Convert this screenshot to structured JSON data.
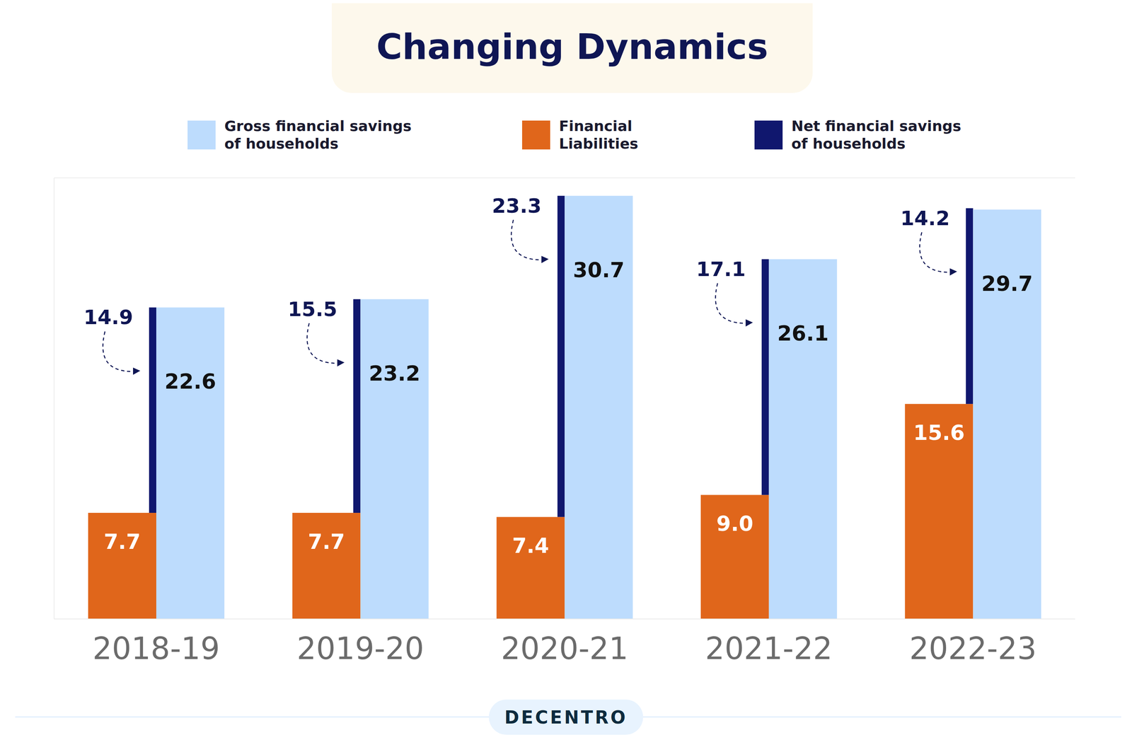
{
  "chart_data": {
    "type": "bar",
    "title": "Changing Dynamics",
    "categories": [
      "2018-19",
      "2019-20",
      "2020-21",
      "2021-22",
      "2022-23"
    ],
    "series": [
      {
        "name": "Gross financial savings of households",
        "color": "#bddcfd",
        "values": [
          22.6,
          23.2,
          30.7,
          26.1,
          29.7
        ]
      },
      {
        "name": "Financial Liabilities",
        "color": "#e0661b",
        "values": [
          7.7,
          7.7,
          7.4,
          9.0,
          15.6
        ],
        "value_labels": [
          "7.7",
          "7.7",
          "7.4",
          "9.0",
          "15.6"
        ],
        "stacked": true
      },
      {
        "name": "Net financial savings of households",
        "color": "#10176e",
        "values": [
          14.9,
          15.5,
          23.3,
          17.1,
          14.2
        ],
        "stacked": true
      }
    ],
    "ylim": [
      0,
      32
    ],
    "yticks": [
      0,
      6,
      12,
      18,
      24,
      30
    ],
    "grid": true,
    "data_labels": true,
    "tick_labels": "x"
  },
  "footer": {
    "text": "DECENTRO"
  }
}
